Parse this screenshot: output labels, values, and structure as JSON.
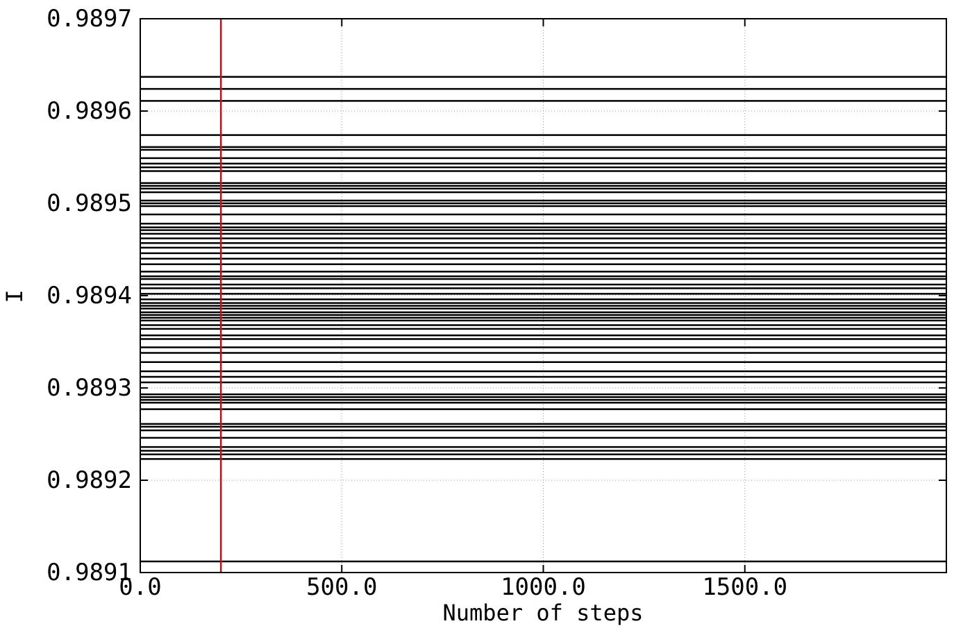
{
  "chart_data": {
    "type": "line",
    "title": "",
    "xlabel": "Number of steps",
    "ylabel": "I",
    "xlim": [
      0,
      2000
    ],
    "ylim": [
      0.9891,
      0.9897
    ],
    "grid": true,
    "grid_style": "dotted",
    "x_ticks": [
      0,
      500,
      1000,
      1500
    ],
    "x_tick_labels": [
      "0.0",
      "500.0",
      "1000.0",
      "1500.0"
    ],
    "y_ticks": [
      0.9891,
      0.9892,
      0.9893,
      0.9894,
      0.9895,
      0.9896,
      0.9897
    ],
    "y_tick_labels": [
      "0.9891",
      "0.9892",
      "0.9893",
      "0.9894",
      "0.9895",
      "0.9896",
      "0.9897"
    ],
    "series_color": "#000000",
    "marker_color": "#e3000f",
    "burn_in_marker_x": 200,
    "constant_series_levels": [
      0.989637,
      0.989624,
      0.989611,
      0.989574,
      0.989561,
      0.989558,
      0.989549,
      0.989543,
      0.989539,
      0.989535,
      0.989522,
      0.989519,
      0.989516,
      0.989512,
      0.989503,
      0.9895,
      0.989497,
      0.989488,
      0.989478,
      0.989474,
      0.989471,
      0.989467,
      0.989462,
      0.989457,
      0.989452,
      0.989446,
      0.98944,
      0.989434,
      0.989426,
      0.989421,
      0.989418,
      0.989412,
      0.989408,
      0.989402,
      0.989396,
      0.989392,
      0.989389,
      0.989386,
      0.989382,
      0.989379,
      0.989376,
      0.989373,
      0.989368,
      0.989364,
      0.989357,
      0.989353,
      0.989344,
      0.989338,
      0.989328,
      0.989318,
      0.989312,
      0.989306,
      0.989293,
      0.98929,
      0.989287,
      0.989284,
      0.989277,
      0.989261,
      0.989258,
      0.989254,
      0.989246,
      0.989236,
      0.989232,
      0.989228,
      0.989223,
      0.989112
    ]
  }
}
